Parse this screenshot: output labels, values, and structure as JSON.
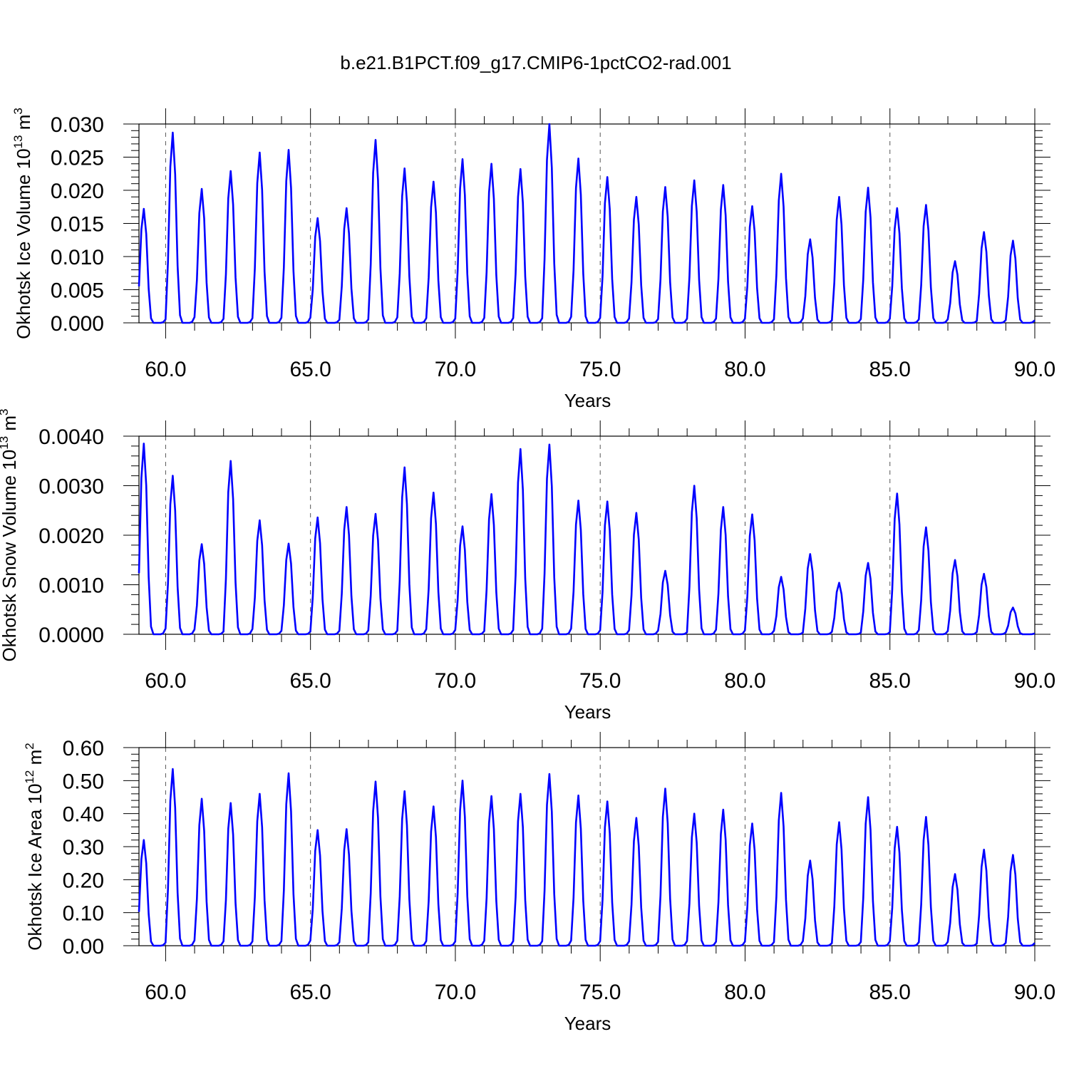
{
  "page_title": "b.e21.B1PCT.f09_g17.CMIP6-1pctCO2-rad.001",
  "chart_data": [
    {
      "type": "line",
      "title": "b.e21.B1PCT.f09_g17.CMIP6-1pctCO2-rad.001",
      "ylabel": "Okhotsk Ice Volume",
      "yunits_base": "10",
      "yunits_exp": "13",
      "yunits_unit": "m",
      "yunits_unit_exp": "3",
      "xlabel": "Years",
      "xlim": [
        59.08,
        90.0
      ],
      "ylim": [
        0.0,
        0.03
      ],
      "xticks": [
        "60.0",
        "65.0",
        "70.0",
        "75.0",
        "80.0",
        "85.0",
        "90.0"
      ],
      "xtick_values": [
        60,
        65,
        70,
        75,
        80,
        85,
        90
      ],
      "yticks": [
        "0.000",
        "0.005",
        "0.010",
        "0.015",
        "0.020",
        "0.025",
        "0.030"
      ],
      "ytick_values": [
        0.0,
        0.005,
        0.01,
        0.015,
        0.02,
        0.025,
        0.03
      ],
      "grid": "dashed vertical lines at major x ticks",
      "series_color": "#0000ff",
      "x_start": 59.08,
      "x_step": 0.0833333,
      "peaks": [
        0.0172,
        0.0287,
        0.0202,
        0.0229,
        0.0257,
        0.0261,
        0.0158,
        0.0173,
        0.0276,
        0.0233,
        0.0213,
        0.0247,
        0.024,
        0.0232,
        0.03,
        0.0248,
        0.022,
        0.019,
        0.0205,
        0.0215,
        0.0208,
        0.0176,
        0.0225,
        0.0126,
        0.019,
        0.0204,
        0.0173,
        0.0178,
        0.0093,
        0.0137,
        0.0124
      ]
    },
    {
      "type": "line",
      "ylabel": "Okhotsk Snow Volume",
      "yunits_base": "10",
      "yunits_exp": "13",
      "yunits_unit": "m",
      "yunits_unit_exp": "3",
      "xlabel": "Years",
      "xlim": [
        59.08,
        90.0
      ],
      "ylim": [
        0.0,
        0.004
      ],
      "xticks": [
        "60.0",
        "65.0",
        "70.0",
        "75.0",
        "80.0",
        "85.0",
        "90.0"
      ],
      "xtick_values": [
        60,
        65,
        70,
        75,
        80,
        85,
        90
      ],
      "yticks": [
        "0.0000",
        "0.0010",
        "0.0020",
        "0.0030",
        "0.0040"
      ],
      "ytick_values": [
        0.0,
        0.001,
        0.002,
        0.003,
        0.004
      ],
      "grid": "dashed vertical lines at major x ticks",
      "series_color": "#0000ff",
      "x_start": 59.08,
      "x_step": 0.0833333,
      "peaks": [
        0.00385,
        0.0032,
        0.00182,
        0.0035,
        0.0023,
        0.00183,
        0.00236,
        0.00257,
        0.00243,
        0.00337,
        0.00286,
        0.00218,
        0.00283,
        0.00374,
        0.00383,
        0.0027,
        0.00268,
        0.00245,
        0.00128,
        0.003,
        0.00257,
        0.00242,
        0.00116,
        0.00162,
        0.00104,
        0.00144,
        0.00284,
        0.00216,
        0.0015,
        0.00122,
        0.00054
      ]
    },
    {
      "type": "line",
      "ylabel": "Okhotsk Ice Area",
      "yunits_base": "10",
      "yunits_exp": "12",
      "yunits_unit": "m",
      "yunits_unit_exp": "2",
      "xlabel": "Years",
      "xlim": [
        59.08,
        90.0
      ],
      "ylim": [
        0.0,
        0.6
      ],
      "xticks": [
        "60.0",
        "65.0",
        "70.0",
        "75.0",
        "80.0",
        "85.0",
        "90.0"
      ],
      "xtick_values": [
        60,
        65,
        70,
        75,
        80,
        85,
        90
      ],
      "yticks": [
        "0.00",
        "0.10",
        "0.20",
        "0.30",
        "0.40",
        "0.50",
        "0.60"
      ],
      "ytick_values": [
        0.0,
        0.1,
        0.2,
        0.3,
        0.4,
        0.5,
        0.6
      ],
      "grid": "dashed vertical lines at major x ticks",
      "series_color": "#0000ff",
      "x_start": 59.08,
      "x_step": 0.0833333,
      "peaks": [
        0.32,
        0.535,
        0.445,
        0.432,
        0.46,
        0.522,
        0.35,
        0.353,
        0.497,
        0.468,
        0.422,
        0.5,
        0.453,
        0.46,
        0.52,
        0.455,
        0.437,
        0.387,
        0.476,
        0.4,
        0.412,
        0.37,
        0.463,
        0.258,
        0.374,
        0.45,
        0.36,
        0.39,
        0.217,
        0.291,
        0.275
      ]
    }
  ]
}
